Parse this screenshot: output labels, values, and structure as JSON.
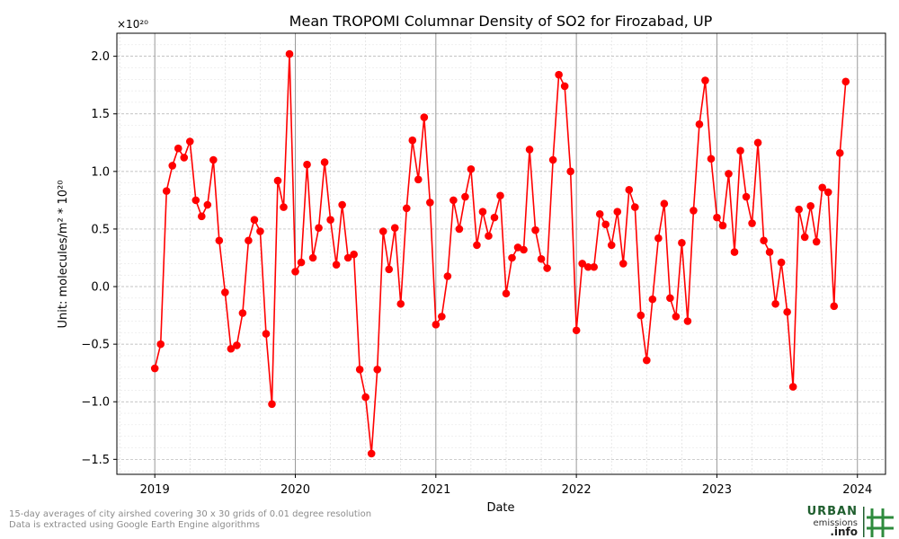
{
  "chart_data": {
    "type": "line",
    "title": "Mean TROPOMI Columnar Density of SO2 for Firozabad, UP",
    "xlabel": "Date",
    "ylabel": "Unit: molecules/m² * 10²⁰",
    "y_scale_label": "×10²⁰",
    "x_ticks": [
      "2019",
      "2020",
      "2021",
      "2022",
      "2023",
      "2024"
    ],
    "y_ticks": [
      "−1.5",
      "−1.0",
      "−0.5",
      "0.0",
      "0.5",
      "1.0",
      "1.5",
      "2.0"
    ],
    "y_tick_values": [
      -1.5,
      -1.0,
      -0.5,
      0.0,
      0.5,
      1.0,
      1.5,
      2.0
    ],
    "ylim": [
      -1.63,
      2.2
    ],
    "xlim": [
      2018.73,
      2024.2
    ],
    "grid": true,
    "series": [
      {
        "name": "SO2 columnar density",
        "color": "#ff0000",
        "marker": "circle",
        "values": [
          -0.71,
          -0.5,
          0.83,
          1.05,
          1.2,
          1.12,
          1.26,
          0.75,
          0.61,
          0.71,
          1.1,
          0.4,
          -0.05,
          -0.54,
          -0.51,
          -0.23,
          0.4,
          0.58,
          0.48,
          -0.41,
          -1.02,
          0.92,
          0.69,
          2.02,
          0.13,
          0.21,
          1.06,
          0.25,
          0.51,
          1.08,
          0.58,
          0.19,
          0.71,
          0.25,
          0.28,
          -0.72,
          -0.96,
          -1.45,
          -0.72,
          0.48,
          0.15,
          0.51,
          -0.15,
          0.68,
          1.27,
          0.93,
          1.47,
          0.73,
          -0.33,
          -0.26,
          0.09,
          0.75,
          0.5,
          0.78,
          1.02,
          0.36,
          0.65,
          0.44,
          0.6,
          0.79,
          -0.06,
          0.25,
          0.34,
          0.32,
          1.19,
          0.49,
          0.24,
          0.16,
          1.1,
          1.84,
          1.74,
          1.0,
          -0.38,
          0.2,
          0.17,
          0.17,
          0.63,
          0.54,
          0.36,
          0.65,
          0.2,
          0.84,
          0.69,
          -0.25,
          -0.64,
          -0.11,
          0.42,
          0.72,
          -0.1,
          -0.26,
          0.38,
          -0.3,
          0.66,
          1.41,
          1.79,
          1.11,
          0.6,
          0.53,
          0.98,
          0.3,
          1.18,
          0.78,
          0.55,
          1.25,
          0.4,
          0.3,
          -0.15,
          0.21,
          -0.22,
          -0.87,
          0.67,
          0.43,
          0.7,
          0.39,
          0.86,
          0.82,
          -0.17,
          1.16,
          1.78
        ],
        "x_start": 2019.0,
        "x_step": 0.04167
      }
    ]
  },
  "footnote": {
    "line1": "15-day averages of city airshed covering 30 x 30 grids of 0.01 degree resolution",
    "line2": "Data is extracted using Google Earth Engine algorithms"
  },
  "logo": {
    "line1": "URBAN",
    "line2": "emissions",
    "line3": ".info"
  }
}
